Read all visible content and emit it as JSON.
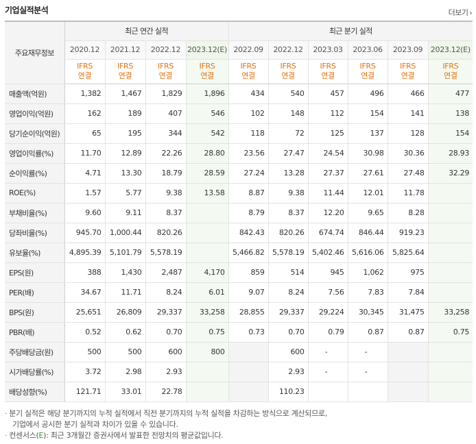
{
  "section_title": "기업실적분석",
  "more_label": "더보기",
  "header": {
    "corner": "주요재무정보",
    "annual_group": "최근 연간 실적",
    "quarter_group": "최근 분기 실적",
    "annual_periods": [
      "2020.12",
      "2021.12",
      "2022.12",
      "2023.12(E)"
    ],
    "quarter_periods": [
      "2022.09",
      "2022.12",
      "2023.03",
      "2023.06",
      "2023.09",
      "2023.12(E)"
    ],
    "ifrs_top": "IFRS",
    "ifrs_bottom": "연결"
  },
  "rows": [
    {
      "label": "매출액(억원)",
      "values": [
        "1,382",
        "1,467",
        "1,829",
        "1,896",
        "434",
        "540",
        "457",
        "496",
        "466",
        "477"
      ]
    },
    {
      "label": "영업이익(억원)",
      "values": [
        "162",
        "189",
        "407",
        "546",
        "102",
        "148",
        "112",
        "154",
        "141",
        "138"
      ]
    },
    {
      "label": "당기순이익(억원)",
      "values": [
        "65",
        "195",
        "344",
        "542",
        "118",
        "72",
        "125",
        "137",
        "128",
        "154"
      ]
    },
    {
      "label": "영업이익률(%)",
      "values": [
        "11.70",
        "12.89",
        "22.26",
        "28.80",
        "23.56",
        "27.47",
        "24.54",
        "30.98",
        "30.36",
        "28.93"
      ]
    },
    {
      "label": "순이익률(%)",
      "values": [
        "4.71",
        "13.30",
        "18.79",
        "28.59",
        "27.24",
        "13.28",
        "27.37",
        "27.61",
        "27.48",
        "32.29"
      ]
    },
    {
      "label": "ROE(%)",
      "values": [
        "1.57",
        "5.77",
        "9.38",
        "13.58",
        "8.87",
        "9.38",
        "11.44",
        "12.01",
        "11.78",
        ""
      ]
    },
    {
      "label": "부채비율(%)",
      "values": [
        "9.60",
        "9.11",
        "8.37",
        "",
        "8.79",
        "8.37",
        "12.20",
        "9.65",
        "8.28",
        ""
      ]
    },
    {
      "label": "당좌비율(%)",
      "values": [
        "945.70",
        "1,000.44",
        "820.26",
        "",
        "842.43",
        "820.26",
        "674.74",
        "846.44",
        "919.23",
        ""
      ]
    },
    {
      "label": "유보율(%)",
      "values": [
        "4,895.39",
        "5,101.79",
        "5,578.19",
        "",
        "5,466.82",
        "5,578.19",
        "5,402.46",
        "5,616.06",
        "5,825.64",
        ""
      ]
    },
    {
      "label": "EPS(원)",
      "values": [
        "388",
        "1,430",
        "2,487",
        "4,170",
        "859",
        "514",
        "945",
        "1,062",
        "975",
        ""
      ]
    },
    {
      "label": "PER(배)",
      "values": [
        "34.67",
        "11.71",
        "8.24",
        "6.01",
        "9.07",
        "8.24",
        "7.56",
        "7.83",
        "7.84",
        ""
      ]
    },
    {
      "label": "BPS(원)",
      "values": [
        "25,651",
        "26,809",
        "29,337",
        "33,258",
        "28,855",
        "29,337",
        "29,224",
        "30,345",
        "31,475",
        "33,258"
      ]
    },
    {
      "label": "PBR(배)",
      "values": [
        "0.52",
        "0.62",
        "0.70",
        "0.75",
        "0.73",
        "0.70",
        "0.79",
        "0.87",
        "0.87",
        "0.75"
      ]
    },
    {
      "label": "주당배당금(원)",
      "values": [
        "500",
        "500",
        "600",
        "800",
        "",
        "600",
        "-",
        "-",
        "",
        ""
      ]
    },
    {
      "label": "시가배당률(%)",
      "values": [
        "3.72",
        "2.98",
        "2.93",
        "",
        "",
        "2.93",
        "-",
        "-",
        "",
        ""
      ]
    },
    {
      "label": "배당성향(%)",
      "values": [
        "121.71",
        "33.01",
        "22.78",
        "",
        "",
        "110.23",
        "",
        "",
        "",
        ""
      ]
    }
  ],
  "notes": {
    "line1": "분기 실적은 해당 분기까지의 누적 실적에서 직전 분기까지의 누적 실적을 차감하는 방식으로 계산되므로,",
    "line2": "기업에서 공시한 분기 실적과 차이가 있을 수 있습니다.",
    "line3_prefix": "컨센서스(",
    "line3_e": "E",
    "line3_suffix": "): 최근 3개월간 증권사에서 발표한 전망치의 평균값입니다."
  }
}
